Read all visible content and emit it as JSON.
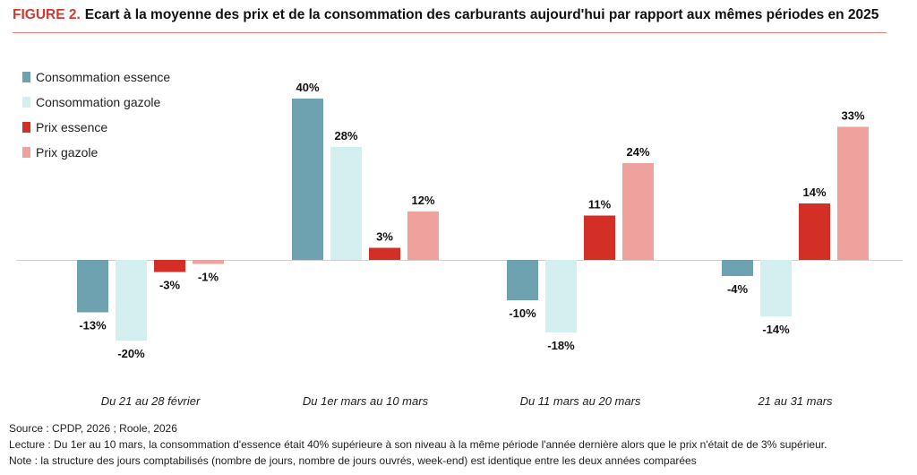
{
  "title": {
    "figure_label": "FIGURE 2.",
    "text": "Ecart à la moyenne des prix et de la consommation des carburants aujourd'hui par rapport aux mêmes périodes en 2025"
  },
  "chart_data": {
    "type": "bar",
    "categories": [
      "Du 21 au 28 février",
      "Du 1er mars au 10 mars",
      "Du 11 mars au 20 mars",
      "21 au 31 mars"
    ],
    "series": [
      {
        "name": "Consommation essence",
        "color": "#6fa2b1",
        "values": [
          -13,
          40,
          -10,
          -4
        ]
      },
      {
        "name": "Consommation gazole",
        "color": "#d4eff0",
        "values": [
          -20,
          28,
          -18,
          -14
        ]
      },
      {
        "name": "Prix essence",
        "color": "#d32f27",
        "values": [
          -3,
          3,
          11,
          14
        ]
      },
      {
        "name": "Prix gazole",
        "color": "#efa29d",
        "values": [
          -1,
          12,
          24,
          33
        ]
      }
    ],
    "value_suffix": "%",
    "ylim": [
      -22,
      42
    ],
    "grid": false,
    "legend_position": "top-left",
    "xlabel": "",
    "ylabel": ""
  },
  "footer": {
    "source": "Source : CPDP, 2026 ; Roole, 2026",
    "lecture": "Lecture : Du 1er au 10 mars, la consommation d'essence était 40% supérieure à son niveau à la même période l'année dernière alors que le prix n'était de de 3% supérieur.",
    "note": "Note : la structure des jours comptabilisés (nombre de jours, nombre de jours ouvrés, week-end) est identique entre les deux années comparées"
  }
}
